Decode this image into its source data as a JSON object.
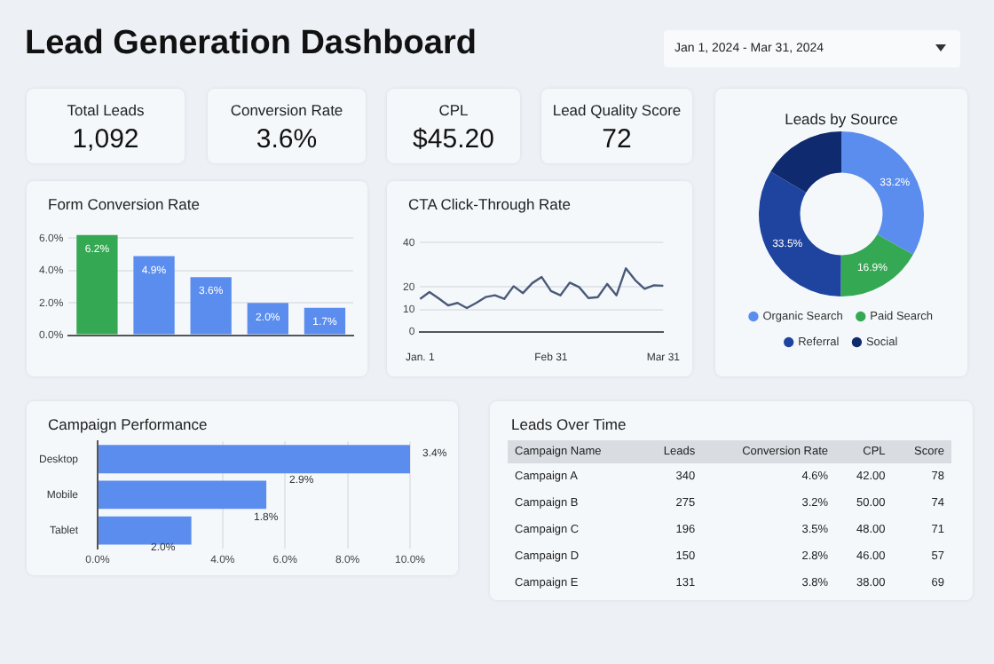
{
  "chart_data": [
    {
      "type": "other",
      "title": "Lead Generation Dashboard",
      "annotations": [
        "Jan 1, 2024 - Mar 31, 2024"
      ]
    },
    {
      "type": "other",
      "title": "Total Leads",
      "annotations": [
        "1,092"
      ]
    },
    {
      "type": "other",
      "title": "Conversion Rate",
      "annotations": [
        "3.6%"
      ]
    },
    {
      "type": "other",
      "title": "CPL",
      "annotations": [
        "$45.20"
      ]
    },
    {
      "type": "other",
      "title": "Lead Quality Score",
      "annotations": [
        "72"
      ]
    },
    {
      "type": "bar",
      "title": "Form Conversion Rate",
      "categories": [
        null,
        null,
        null,
        null,
        null
      ],
      "values": [
        6.2,
        4.9,
        3.6,
        2.0,
        1.7
      ],
      "colors": [
        "#34a853",
        "#5b8def",
        "#5b8def",
        "#5b8def",
        "#5b8def"
      ],
      "value_labels": [
        "6.2%",
        "4.9%",
        "3.6%",
        "2.0%",
        "1.7%"
      ],
      "ylim": [
        0,
        6.4
      ],
      "yticks": [
        {
          "value": 0,
          "label": "0.0%"
        },
        {
          "value": 2,
          "label": "2.0%"
        },
        {
          "value": 4,
          "label": "4.0%"
        },
        {
          "value": 6,
          "label": "6.0%"
        }
      ],
      "grid": "y"
    },
    {
      "type": "line",
      "title": "CTA Click-Through Rate",
      "categories": [
        "Jan. 1",
        null,
        null,
        null,
        null,
        null,
        null,
        null,
        null,
        null,
        null,
        null,
        null,
        null,
        "Feb 31",
        null,
        null,
        null,
        null,
        null,
        null,
        null,
        null,
        null,
        null,
        null,
        "Mar 31"
      ],
      "values": [
        14.7,
        17.8,
        14.9,
        11.8,
        12.9,
        10.6,
        12.9,
        15.5,
        16.3,
        14.7,
        20.4,
        17.3,
        21.8,
        24.5,
        18.2,
        16.3,
        22.0,
        20.0,
        15.1,
        15.5,
        21.4,
        16.3,
        28.4,
        23.1,
        19.2,
        20.8,
        20.6
      ],
      "color": "#4a5a78",
      "ylim": [
        0,
        40
      ],
      "yticks": [
        0,
        10,
        20,
        40
      ],
      "grid": "y"
    },
    {
      "type": "donut",
      "title": "Leads by Source",
      "categories": [
        "Organic Search",
        "Paid Search",
        "Referral",
        "Social"
      ],
      "values": [
        33.2,
        16.9,
        33.5,
        16.4
      ],
      "colors": [
        "#5b8def",
        "#34a853",
        "#1e44a0",
        "#0f2a6e"
      ],
      "value_labels": [
        "33.2%",
        "16.9%",
        "33.5%",
        null
      ],
      "legend": "bottom"
    },
    {
      "type": "bar",
      "orientation": "horizontal",
      "title": "Campaign Performance",
      "categories": [
        "Desktop",
        "Mobile",
        "Tablet"
      ],
      "values": [
        10.0,
        5.4,
        3.0
      ],
      "color": "#5b8def",
      "xlim": [
        0,
        10
      ],
      "xticks": [
        {
          "value": 0,
          "label": "0.0%"
        },
        {
          "value": 4,
          "label": "4.0%"
        },
        {
          "value": 6,
          "label": "6.0%"
        },
        {
          "value": 8,
          "label": "8.0%"
        },
        {
          "value": 10,
          "label": "10.0%"
        }
      ],
      "grid": "x",
      "annotations": [
        "3.4%",
        "2.9%",
        "1.8%",
        "2.0%"
      ]
    },
    {
      "type": "other",
      "title": "Leads Over Time",
      "xlabel": "Campaign Name",
      "categories": [
        "Campaign A",
        "Campaign B",
        "Campaign C",
        "Campaign D",
        "Campaign E"
      ],
      "data_labels": true,
      "series": [
        {
          "name": "Leads",
          "values": [
            340,
            275,
            196,
            150,
            131
          ]
        },
        {
          "name": "Conversion Rate",
          "values": [
            4.6,
            3.2,
            3.5,
            2.8,
            3.8
          ],
          "value_labels": [
            "4.6%",
            "3.2%",
            "3.5%",
            "2.8%",
            "3.8%"
          ]
        },
        {
          "name": "CPL",
          "values": [
            42,
            50,
            48,
            46,
            38
          ],
          "value_labels": [
            "42.00",
            "50.00",
            "48.00",
            "46.00",
            "38.00"
          ]
        },
        {
          "name": "Score",
          "values": [
            78,
            74,
            71,
            57,
            69
          ]
        }
      ]
    }
  ]
}
